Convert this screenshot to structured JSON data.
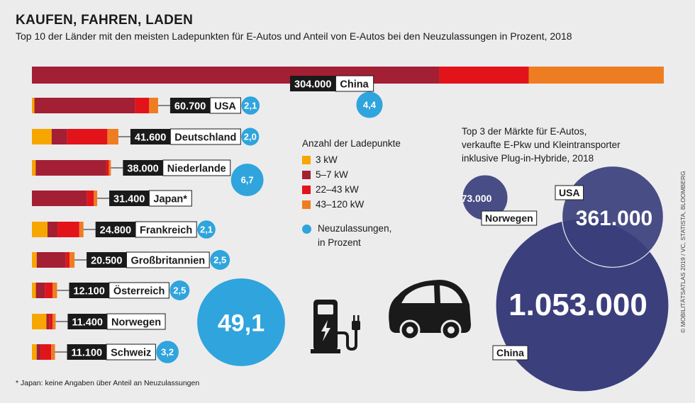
{
  "title": "KAUFEN, FAHREN, LADEN",
  "subtitle": "Top 10 der Länder mit den meisten Ladepunkten für E-Autos und Anteil von E-Autos bei den Neuzulassungen in Prozent, 2018",
  "footnote": "* Japan: keine Angaben über Anteil an Neuzulassungen",
  "credit": "© MOBILITÄTSATLAS 2019 / VC, STATISTA, BLOOMBERG",
  "legend": {
    "title": "Anzahl der Ladepunkte",
    "items": [
      {
        "label": "3 kW",
        "color": "#f7a600"
      },
      {
        "label": "5–7 kW",
        "color": "#a31f34"
      },
      {
        "label": "22–43 kW",
        "color": "#e3131a"
      },
      {
        "label": "43–120 kW",
        "color": "#ee7d22"
      }
    ],
    "circle_label_1": "Neuzulassungen,",
    "circle_label_2": "in Prozent"
  },
  "top3": {
    "line1": "Top 3 der Märkte für E-Autos,",
    "line2": "verkaufte E-Pkw und Kleintransporter",
    "line3": "inklusive Plug-in-Hybride, 2018"
  },
  "colors": {
    "kw3": "#f7a600",
    "kw5_7": "#a31f34",
    "kw22_43": "#e3131a",
    "kw43_120": "#ee7d22",
    "share": "#2fa4dd",
    "market": "#3b3f7c"
  },
  "chart_data": [
    {
      "type": "bar",
      "stacked": true,
      "orientation": "horizontal",
      "series_labels": [
        "3 kW",
        "5–7 kW",
        "22–43 kW",
        "43–120 kW"
      ],
      "categories": [
        "China",
        "USA",
        "Deutschland",
        "Niederlande",
        "Japan*",
        "Frankreich",
        "Großbritannien",
        "Österreich",
        "Norwegen",
        "Schweiz"
      ],
      "totals": [
        304000,
        60700,
        41600,
        38000,
        31400,
        24800,
        20500,
        12100,
        11400,
        11100
      ],
      "total_labels": [
        "304.000",
        "60.700",
        "41.600",
        "38.000",
        "31.400",
        "24.800",
        "20.500",
        "12.100",
        "11.400",
        "11.100"
      ],
      "segments": [
        [
          0,
          196000,
          43000,
          65000
        ],
        [
          1200,
          48500,
          6700,
          4300
        ],
        [
          9500,
          7500,
          19300,
          5300
        ],
        [
          1800,
          34000,
          1200,
          1000
        ],
        [
          0,
          26500,
          3300,
          1600
        ],
        [
          7500,
          4800,
          10500,
          2000
        ],
        [
          2300,
          14000,
          1800,
          2400
        ],
        [
          1900,
          4500,
          3500,
          2200
        ],
        [
          7000,
          1300,
          1600,
          1500
        ],
        [
          2300,
          2000,
          5000,
          1800
        ]
      ],
      "share_percent": [
        4.4,
        2.1,
        2.0,
        6.7,
        null,
        2.1,
        2.5,
        2.5,
        49.1,
        3.2
      ],
      "share_labels": [
        "4,4",
        "2,1",
        "2,0",
        "6,7",
        "",
        "2,1",
        "2,5",
        "2,5",
        "49,1",
        "3,2"
      ]
    },
    {
      "type": "bubble",
      "categories": [
        "China",
        "USA",
        "Norwegen"
      ],
      "values": [
        1053000,
        361000,
        73000
      ],
      "value_labels": [
        "1.053.000",
        "361.000",
        "73.000"
      ]
    }
  ]
}
